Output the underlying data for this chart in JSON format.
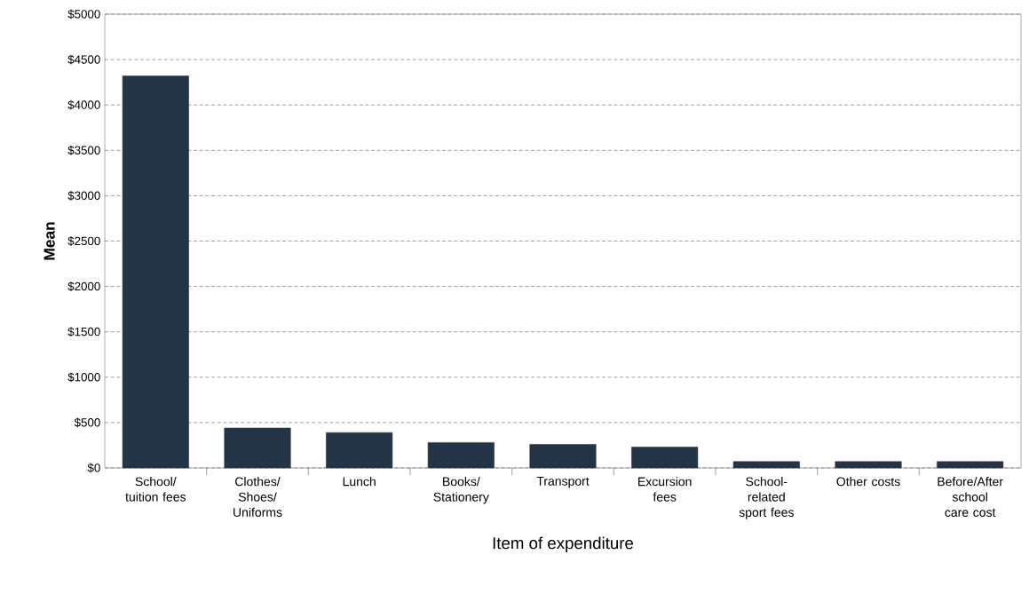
{
  "chart_data": {
    "type": "bar",
    "xlabel": "Item of expenditure",
    "ylabel": "Mean",
    "categories": [
      "School/ tuition fees",
      "Clothes/ Shoes/ Uniforms",
      "Lunch",
      "Books/ Stationery",
      "Transport",
      "Excursion fees",
      "School-related sport fees",
      "Other costs",
      "Before/After school care cost"
    ],
    "values": [
      4320,
      440,
      390,
      280,
      260,
      230,
      70,
      70,
      70
    ],
    "color": "#243447",
    "ylim": [
      0,
      5000
    ],
    "yticks": [
      {
        "value": 0,
        "label": "$0"
      },
      {
        "value": 500,
        "label": "$500"
      },
      {
        "value": 1000,
        "label": "$1000"
      },
      {
        "value": 1500,
        "label": "$1500"
      },
      {
        "value": 2000,
        "label": "$2000"
      },
      {
        "value": 2500,
        "label": "$2500"
      },
      {
        "value": 3000,
        "label": "$3000"
      },
      {
        "value": 3500,
        "label": "$3500"
      },
      {
        "value": 4000,
        "label": "$4000"
      },
      {
        "value": 4500,
        "label": "$4500"
      },
      {
        "value": 5000,
        "label": "$5000"
      }
    ],
    "grid": "y"
  }
}
